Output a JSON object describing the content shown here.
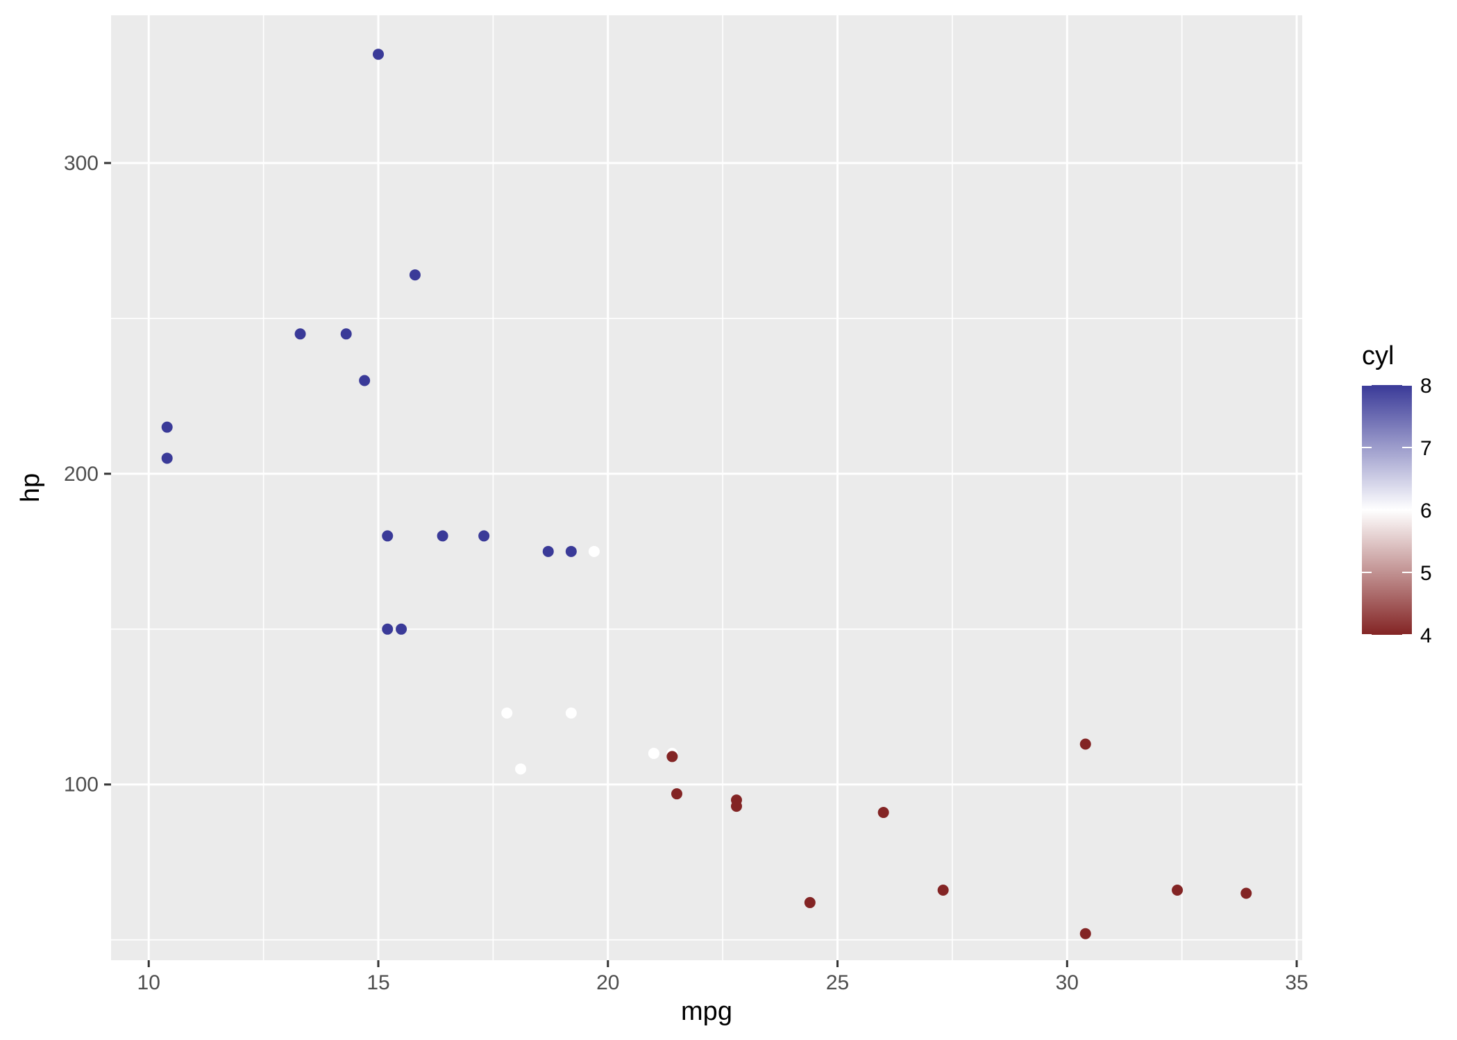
{
  "chart_data": {
    "type": "scatter",
    "xlabel": "mpg",
    "ylabel": "hp",
    "xlim": [
      9.18,
      35.12
    ],
    "ylim": [
      43.45,
      347.55
    ],
    "x_ticks": [
      10,
      15,
      20,
      25,
      30,
      35
    ],
    "x_tick_labels": [
      "10",
      "15",
      "20",
      "25",
      "30",
      "35"
    ],
    "y_ticks": [
      100,
      200,
      300
    ],
    "y_tick_labels": [
      "100",
      "200",
      "300"
    ],
    "grid": true,
    "panel_background": "#ebebeb",
    "grid_color": "#ffffff",
    "legend": {
      "title": "cyl",
      "placement": "right",
      "min": 4,
      "max": 8,
      "ticks": [
        4,
        5,
        6,
        7,
        8
      ],
      "tick_labels": [
        "4",
        "5",
        "6",
        "7",
        "8"
      ],
      "low_color": "#832424",
      "mid_color": "#ffffff",
      "high_color": "#3a3a98",
      "midpoint": 6
    },
    "points": [
      {
        "mpg": 21.0,
        "hp": 110,
        "cyl": 6
      },
      {
        "mpg": 21.0,
        "hp": 110,
        "cyl": 6
      },
      {
        "mpg": 22.8,
        "hp": 93,
        "cyl": 4
      },
      {
        "mpg": 21.4,
        "hp": 110,
        "cyl": 6
      },
      {
        "mpg": 18.7,
        "hp": 175,
        "cyl": 8
      },
      {
        "mpg": 18.1,
        "hp": 105,
        "cyl": 6
      },
      {
        "mpg": 14.3,
        "hp": 245,
        "cyl": 8
      },
      {
        "mpg": 24.4,
        "hp": 62,
        "cyl": 4
      },
      {
        "mpg": 22.8,
        "hp": 95,
        "cyl": 4
      },
      {
        "mpg": 19.2,
        "hp": 123,
        "cyl": 6
      },
      {
        "mpg": 17.8,
        "hp": 123,
        "cyl": 6
      },
      {
        "mpg": 16.4,
        "hp": 180,
        "cyl": 8
      },
      {
        "mpg": 17.3,
        "hp": 180,
        "cyl": 8
      },
      {
        "mpg": 15.2,
        "hp": 180,
        "cyl": 8
      },
      {
        "mpg": 10.4,
        "hp": 205,
        "cyl": 8
      },
      {
        "mpg": 10.4,
        "hp": 215,
        "cyl": 8
      },
      {
        "mpg": 14.7,
        "hp": 230,
        "cyl": 8
      },
      {
        "mpg": 32.4,
        "hp": 66,
        "cyl": 4
      },
      {
        "mpg": 30.4,
        "hp": 52,
        "cyl": 4
      },
      {
        "mpg": 33.9,
        "hp": 65,
        "cyl": 4
      },
      {
        "mpg": 21.5,
        "hp": 97,
        "cyl": 4
      },
      {
        "mpg": 15.5,
        "hp": 150,
        "cyl": 8
      },
      {
        "mpg": 15.2,
        "hp": 150,
        "cyl": 8
      },
      {
        "mpg": 13.3,
        "hp": 245,
        "cyl": 8
      },
      {
        "mpg": 19.2,
        "hp": 175,
        "cyl": 8
      },
      {
        "mpg": 27.3,
        "hp": 66,
        "cyl": 4
      },
      {
        "mpg": 26.0,
        "hp": 91,
        "cyl": 4
      },
      {
        "mpg": 30.4,
        "hp": 113,
        "cyl": 4
      },
      {
        "mpg": 15.8,
        "hp": 264,
        "cyl": 8
      },
      {
        "mpg": 19.7,
        "hp": 175,
        "cyl": 6
      },
      {
        "mpg": 15.0,
        "hp": 335,
        "cyl": 8
      },
      {
        "mpg": 21.4,
        "hp": 109,
        "cyl": 4
      }
    ]
  }
}
